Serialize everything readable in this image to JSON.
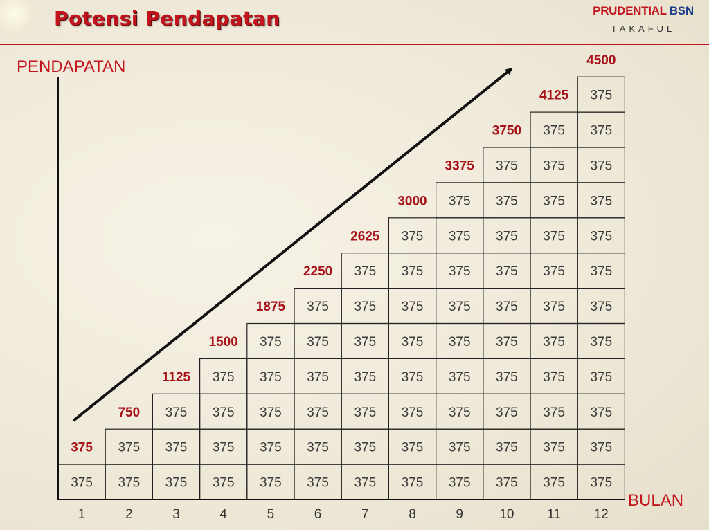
{
  "header": {
    "title": "Potensi Pendapatan",
    "logo_brand_red": "PRUDENTIAL",
    "logo_brand_blue": "BSN",
    "logo_sub": "TAKAFUL"
  },
  "colors": {
    "accent_red": "#c2141c",
    "brand_blue": "#1d3f8a"
  },
  "chart_data": {
    "type": "bar",
    "xlabel": "BULAN",
    "ylabel": "PENDAPATAN",
    "categories": [
      "1",
      "2",
      "3",
      "4",
      "5",
      "6",
      "7",
      "8",
      "9",
      "10",
      "11",
      "12"
    ],
    "block_value": "375",
    "values": [
      375,
      750,
      1125,
      1500,
      1875,
      2250,
      2625,
      3000,
      3375,
      3750,
      4125,
      4500
    ],
    "value_labels": [
      "375",
      "750",
      "1125",
      "1500",
      "1875",
      "2250",
      "2625",
      "3000",
      "3375",
      "3750",
      "4125",
      "4500"
    ]
  }
}
